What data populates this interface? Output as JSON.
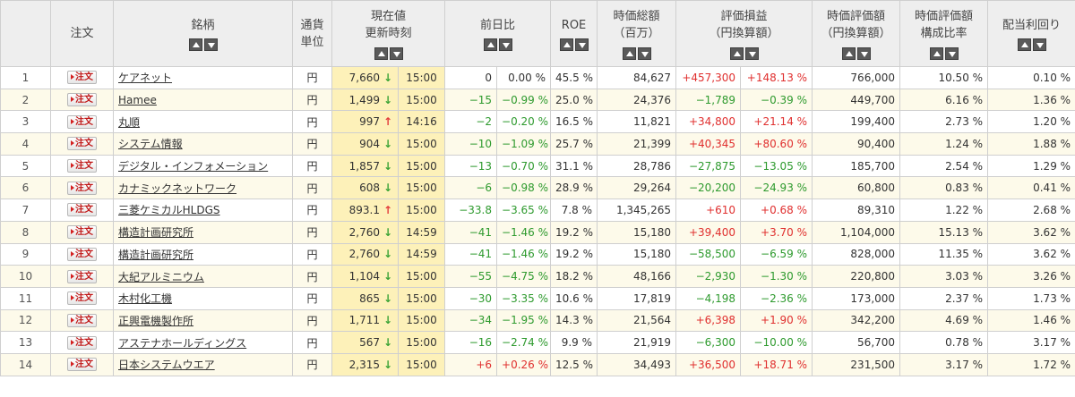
{
  "headers": {
    "no": "",
    "order": "注文",
    "name": "銘柄",
    "currency": [
      "通貨",
      "単位"
    ],
    "price": [
      "現在値",
      "更新時刻"
    ],
    "change": "前日比",
    "roe": "ROE",
    "mcap": [
      "時価総額",
      "（百万）"
    ],
    "pl": [
      "評価損益",
      "（円換算額）"
    ],
    "value": [
      "時価評価額",
      "（円換算額）"
    ],
    "ratio": [
      "時価評価額",
      "構成比率"
    ],
    "yield": "配当利回り"
  },
  "order_label": "注文",
  "rows": [
    {
      "no": "1",
      "name": "ケアネット",
      "cur": "円",
      "price": "7,660",
      "dir": "down",
      "time": "15:00",
      "chg": "0",
      "chg_pct": "0.00 %",
      "chg_sign": "zero",
      "roe": "45.5 %",
      "mcap": "84,627",
      "pl": "+457,300",
      "pl_pct": "+148.13 %",
      "pl_sign": "pos",
      "value": "766,000",
      "ratio": "10.50 %",
      "yield": "0.10 %"
    },
    {
      "no": "2",
      "name": "Hamee",
      "cur": "円",
      "price": "1,499",
      "dir": "down",
      "time": "15:00",
      "chg": "−15",
      "chg_pct": "−0.99 %",
      "chg_sign": "neg",
      "roe": "25.0 %",
      "mcap": "24,376",
      "pl": "−1,789",
      "pl_pct": "−0.39 %",
      "pl_sign": "neg",
      "value": "449,700",
      "ratio": "6.16 %",
      "yield": "1.36 %"
    },
    {
      "no": "3",
      "name": "丸順",
      "cur": "円",
      "price": "997",
      "dir": "up",
      "time": "14:16",
      "chg": "−2",
      "chg_pct": "−0.20 %",
      "chg_sign": "neg",
      "roe": "16.5 %",
      "mcap": "11,821",
      "pl": "+34,800",
      "pl_pct": "+21.14 %",
      "pl_sign": "pos",
      "value": "199,400",
      "ratio": "2.73 %",
      "yield": "1.20 %"
    },
    {
      "no": "4",
      "name": "システム情報",
      "cur": "円",
      "price": "904",
      "dir": "down",
      "time": "15:00",
      "chg": "−10",
      "chg_pct": "−1.09 %",
      "chg_sign": "neg",
      "roe": "25.7 %",
      "mcap": "21,399",
      "pl": "+40,345",
      "pl_pct": "+80.60 %",
      "pl_sign": "pos",
      "value": "90,400",
      "ratio": "1.24 %",
      "yield": "1.88 %"
    },
    {
      "no": "5",
      "name": "デジタル・インフォメーション",
      "cur": "円",
      "price": "1,857",
      "dir": "down",
      "time": "15:00",
      "chg": "−13",
      "chg_pct": "−0.70 %",
      "chg_sign": "neg",
      "roe": "31.1 %",
      "mcap": "28,786",
      "pl": "−27,875",
      "pl_pct": "−13.05 %",
      "pl_sign": "neg",
      "value": "185,700",
      "ratio": "2.54 %",
      "yield": "1.29 %"
    },
    {
      "no": "6",
      "name": "カナミックネットワーク",
      "cur": "円",
      "price": "608",
      "dir": "down",
      "time": "15:00",
      "chg": "−6",
      "chg_pct": "−0.98 %",
      "chg_sign": "neg",
      "roe": "28.9 %",
      "mcap": "29,264",
      "pl": "−20,200",
      "pl_pct": "−24.93 %",
      "pl_sign": "neg",
      "value": "60,800",
      "ratio": "0.83 %",
      "yield": "0.41 %"
    },
    {
      "no": "7",
      "name": "三菱ケミカルHLDGS",
      "cur": "円",
      "price": "893.1",
      "dir": "up",
      "time": "15:00",
      "chg": "−33.8",
      "chg_pct": "−3.65 %",
      "chg_sign": "neg",
      "roe": "7.8 %",
      "mcap": "1,345,265",
      "pl": "+610",
      "pl_pct": "+0.68 %",
      "pl_sign": "pos",
      "value": "89,310",
      "ratio": "1.22 %",
      "yield": "2.68 %"
    },
    {
      "no": "8",
      "name": "構造計画研究所",
      "cur": "円",
      "price": "2,760",
      "dir": "down",
      "time": "14:59",
      "chg": "−41",
      "chg_pct": "−1.46 %",
      "chg_sign": "neg",
      "roe": "19.2 %",
      "mcap": "15,180",
      "pl": "+39,400",
      "pl_pct": "+3.70 %",
      "pl_sign": "pos",
      "value": "1,104,000",
      "ratio": "15.13 %",
      "yield": "3.62 %"
    },
    {
      "no": "9",
      "name": "構造計画研究所",
      "cur": "円",
      "price": "2,760",
      "dir": "down",
      "time": "14:59",
      "chg": "−41",
      "chg_pct": "−1.46 %",
      "chg_sign": "neg",
      "roe": "19.2 %",
      "mcap": "15,180",
      "pl": "−58,500",
      "pl_pct": "−6.59 %",
      "pl_sign": "neg",
      "value": "828,000",
      "ratio": "11.35 %",
      "yield": "3.62 %"
    },
    {
      "no": "10",
      "name": "大紀アルミニウム",
      "cur": "円",
      "price": "1,104",
      "dir": "down",
      "time": "15:00",
      "chg": "−55",
      "chg_pct": "−4.75 %",
      "chg_sign": "neg",
      "roe": "18.2 %",
      "mcap": "48,166",
      "pl": "−2,930",
      "pl_pct": "−1.30 %",
      "pl_sign": "neg",
      "value": "220,800",
      "ratio": "3.03 %",
      "yield": "3.26 %"
    },
    {
      "no": "11",
      "name": "木村化工機",
      "cur": "円",
      "price": "865",
      "dir": "down",
      "time": "15:00",
      "chg": "−30",
      "chg_pct": "−3.35 %",
      "chg_sign": "neg",
      "roe": "10.6 %",
      "mcap": "17,819",
      "pl": "−4,198",
      "pl_pct": "−2.36 %",
      "pl_sign": "neg",
      "value": "173,000",
      "ratio": "2.37 %",
      "yield": "1.73 %"
    },
    {
      "no": "12",
      "name": "正興電機製作所",
      "cur": "円",
      "price": "1,711",
      "dir": "down",
      "time": "15:00",
      "chg": "−34",
      "chg_pct": "−1.95 %",
      "chg_sign": "neg",
      "roe": "14.3 %",
      "mcap": "21,564",
      "pl": "+6,398",
      "pl_pct": "+1.90 %",
      "pl_sign": "pos",
      "value": "342,200",
      "ratio": "4.69 %",
      "yield": "1.46 %"
    },
    {
      "no": "13",
      "name": "アステナホールディングス",
      "cur": "円",
      "price": "567",
      "dir": "down",
      "time": "15:00",
      "chg": "−16",
      "chg_pct": "−2.74 %",
      "chg_sign": "neg",
      "roe": "9.9 %",
      "mcap": "21,919",
      "pl": "−6,300",
      "pl_pct": "−10.00 %",
      "pl_sign": "neg",
      "value": "56,700",
      "ratio": "0.78 %",
      "yield": "3.17 %"
    },
    {
      "no": "14",
      "name": "日本システムウエア",
      "cur": "円",
      "price": "2,315",
      "dir": "down",
      "time": "15:00",
      "chg": "+6",
      "chg_pct": "+0.26 %",
      "chg_sign": "pos",
      "roe": "12.5 %",
      "mcap": "34,493",
      "pl": "+36,500",
      "pl_pct": "+18.71 %",
      "pl_sign": "pos",
      "value": "231,500",
      "ratio": "3.17 %",
      "yield": "1.72 %"
    }
  ],
  "colors": {
    "positive": "#e0302f",
    "negative": "#2e9a2e",
    "price_highlight": "#fdf1b9",
    "row_alt": "#fdfaea",
    "header_bg": "#eeeeee"
  },
  "icons": {
    "sort_up": "sort-ascending-icon",
    "sort_down": "sort-descending-icon",
    "arrow_up": "↑",
    "arrow_down": "↓"
  }
}
